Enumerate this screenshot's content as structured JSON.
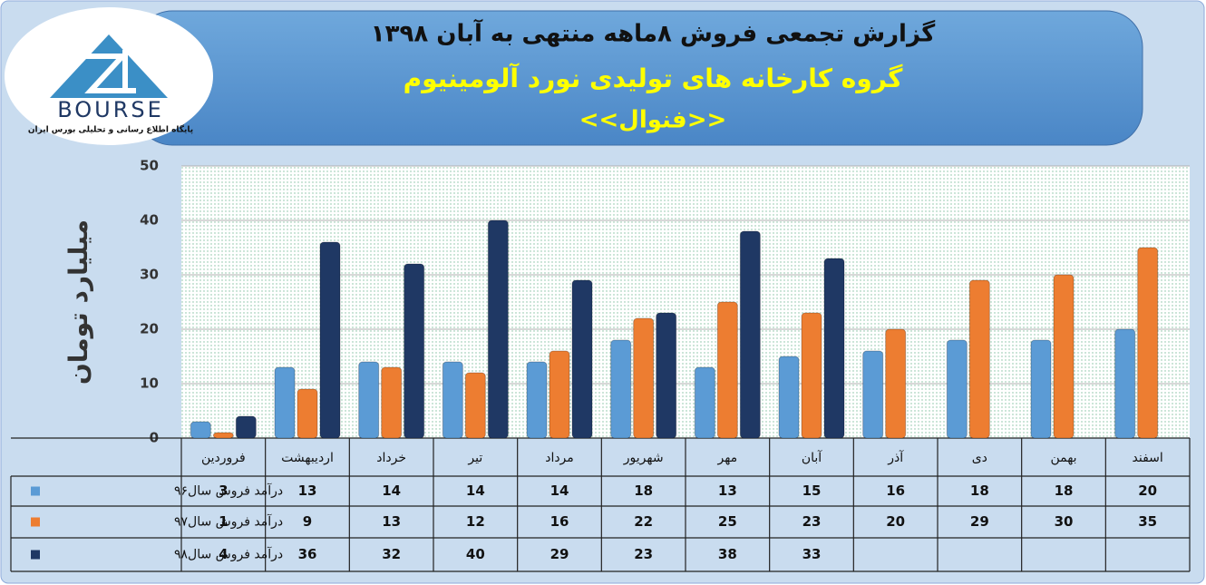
{
  "logo": {
    "name": "BOURSE",
    "tagline": "پایگاه اطلاع رسانی و تحلیلی بورس ایران"
  },
  "chart_data": {
    "type": "bar",
    "title": "گزارش تجمعی فروش  ۸ماهه منتهی به آبان ۱۳۹۸",
    "subtitle": "گروه کارخانه های تولیدی نورد آلومینیوم",
    "company": "<<فنوال>>",
    "y_label": "میلیارد تومان",
    "categories": [
      "فروردین",
      "اردیبهشت",
      "خرداد",
      "تیر",
      "مرداد",
      "شهریور",
      "مهر",
      "آبان",
      "آذر",
      "دی",
      "بهمن",
      "اسفند"
    ],
    "series": [
      {
        "name": "درآمد فروش سال۹۶",
        "color": "#5b9bd5",
        "values": [
          3,
          13,
          14,
          14,
          14,
          18,
          13,
          15,
          16,
          18,
          18,
          20
        ]
      },
      {
        "name": "درآمد فروش سال۹۷",
        "color": "#ed7d31",
        "values": [
          1,
          9,
          13,
          12,
          16,
          22,
          25,
          23,
          20,
          29,
          30,
          35
        ]
      },
      {
        "name": "درآمد فروش سال۹۸",
        "color": "#1f3864",
        "values": [
          4,
          36,
          32,
          40,
          29,
          23,
          38,
          33,
          null,
          null,
          null,
          null
        ]
      }
    ],
    "ylim": [
      0,
      50
    ],
    "yticks": [
      0,
      10,
      20,
      30,
      40,
      50
    ],
    "grid": true
  }
}
